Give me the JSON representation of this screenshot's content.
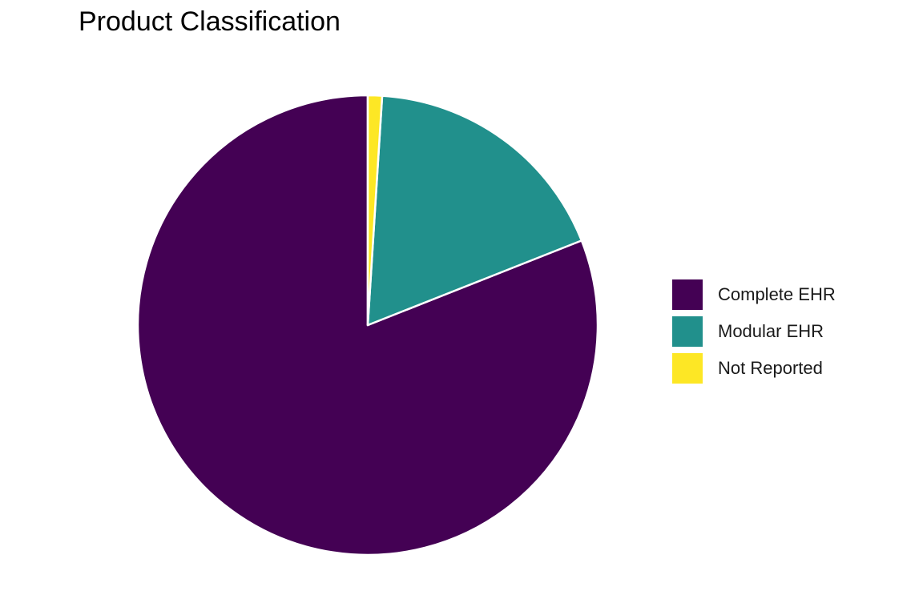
{
  "chart_data": {
    "type": "pie",
    "title": "Product Classification",
    "categories": [
      "Complete EHR",
      "Modular EHR",
      "Not Reported"
    ],
    "values": [
      81.0,
      18.0,
      1.0
    ],
    "colors": [
      "#440154",
      "#21908C",
      "#FDE725"
    ],
    "start_angle_deg": 0,
    "direction": "counterclockwise",
    "legend_position": "right",
    "slice_border_color": "#ffffff"
  }
}
